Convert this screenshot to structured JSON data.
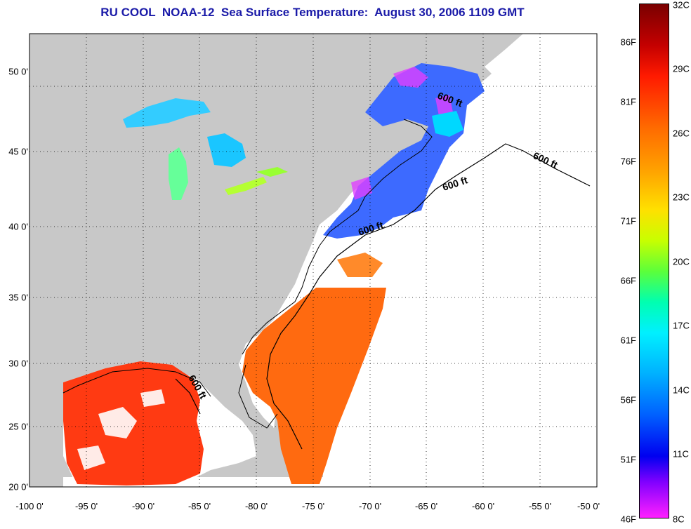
{
  "title": "RU COOL  NOAA-12  Sea Surface Temperature:  August 30, 2006 1109 GMT",
  "x_ticks": [
    "-100 0'",
    "-95 0'",
    "-90 0'",
    "-85 0'",
    "-80 0'",
    "-75 0'",
    "-70 0'",
    "-65 0'",
    "-60 0'",
    "-55 0'",
    "-50 0'"
  ],
  "y_ticks": [
    "50 0'",
    "45 0'",
    "40 0'",
    "35 0'",
    "30 0'",
    "25 0'",
    "20 0'"
  ],
  "colorbar": {
    "fahrenheit": [
      "86F",
      "81F",
      "76F",
      "71F",
      "66F",
      "61F",
      "56F",
      "51F",
      "46F"
    ],
    "celsius": [
      "32C",
      "29C",
      "26C",
      "23C",
      "20C",
      "17C",
      "14C",
      "11C",
      "8C"
    ]
  },
  "contour_label": "600 ft",
  "colors": {
    "land": "#c8c8c8",
    "no_data": "#ffffff",
    "title": "#1a1aa8",
    "warm": "#ff3a00",
    "cool": "#1a6aff"
  }
}
